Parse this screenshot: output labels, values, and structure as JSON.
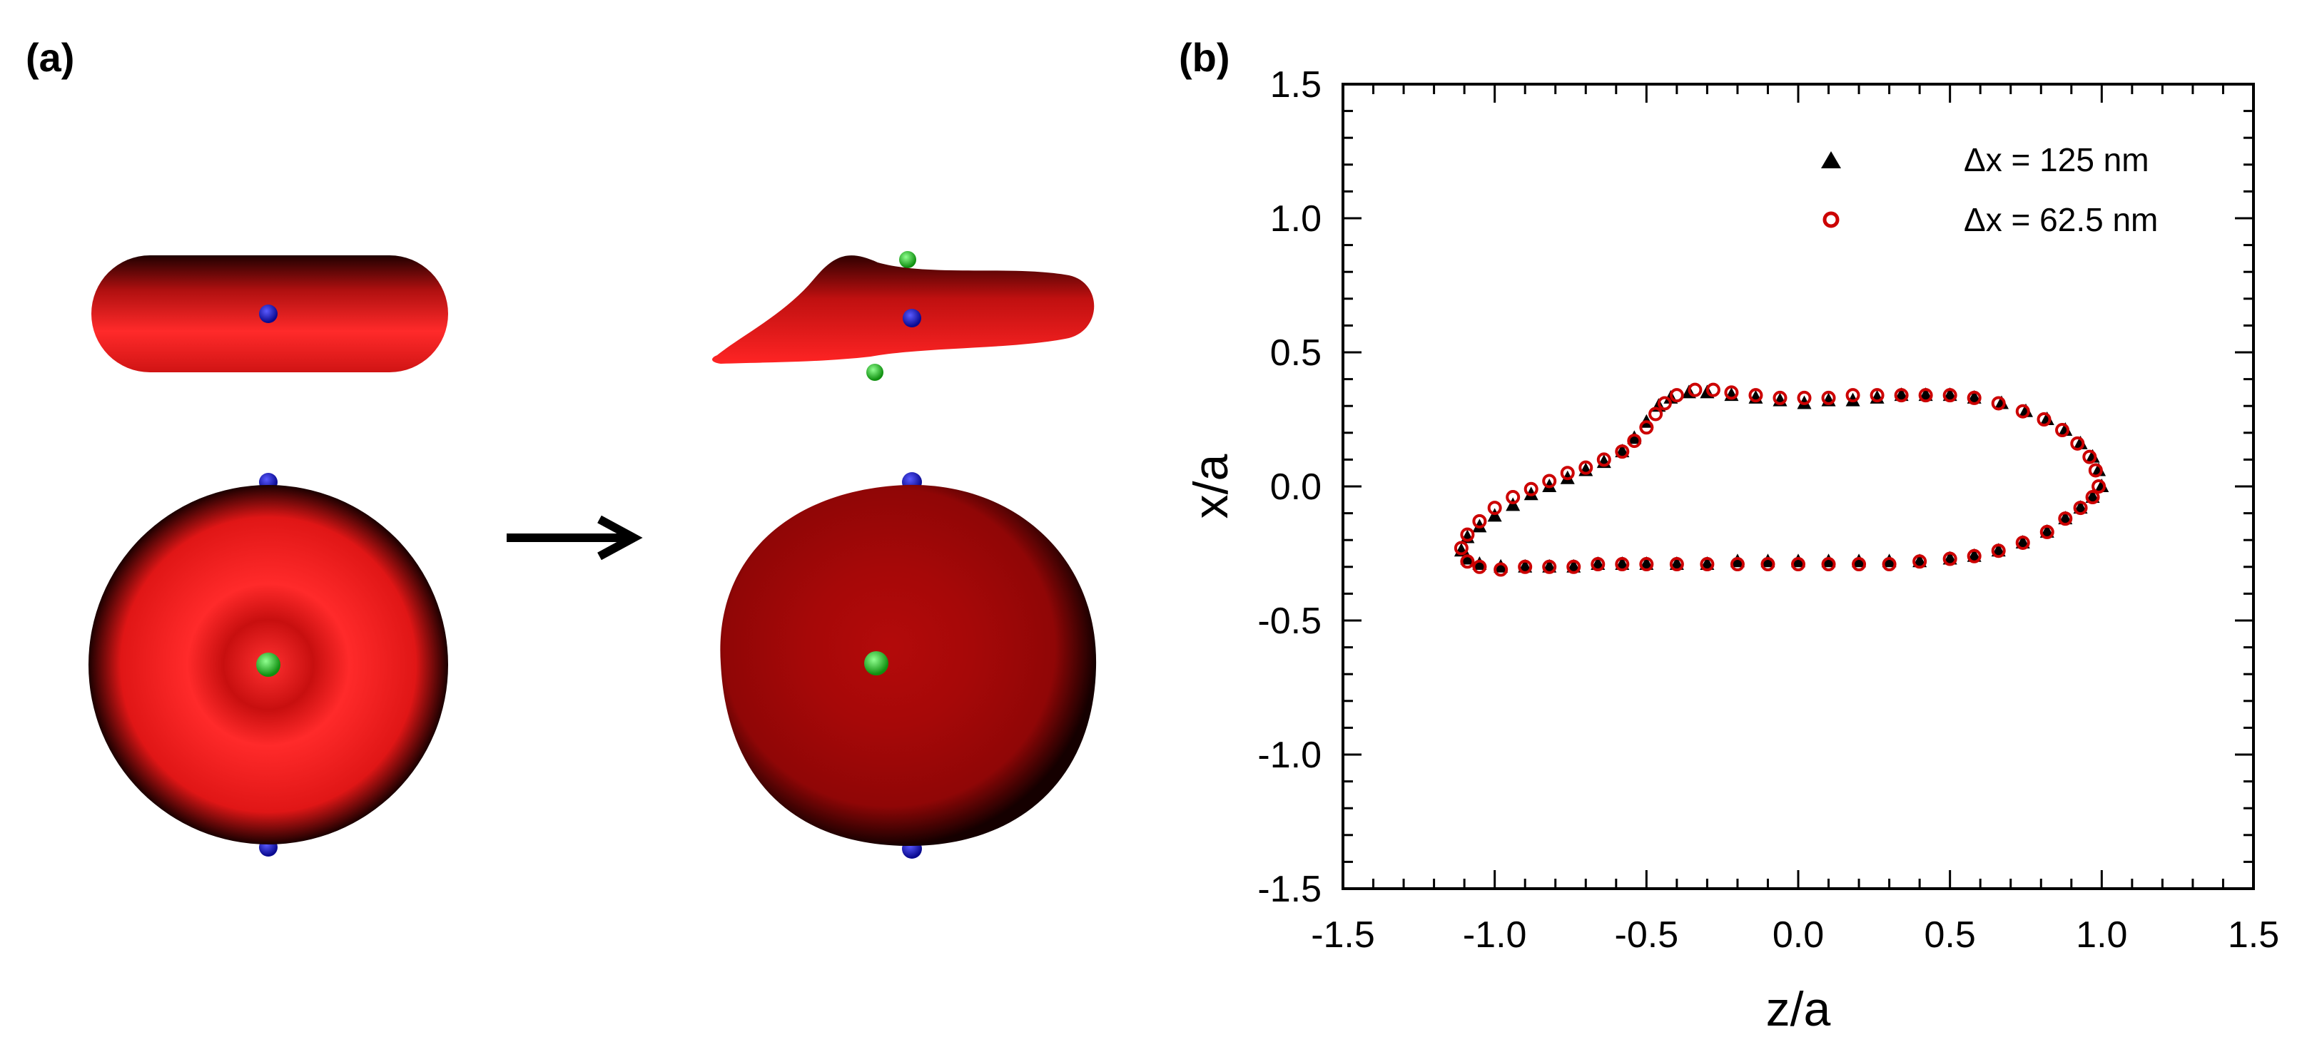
{
  "panel_a": {
    "label": "(a)",
    "colors": {
      "cell": "#ff2222",
      "cell_dark": "#000000",
      "marker_blue": "#1a1ad0",
      "marker_green": "#22cc22",
      "arrow": "#000000"
    }
  },
  "panel_b": {
    "label": "(b)"
  },
  "chart_data": {
    "type": "scatter",
    "title": "",
    "xlabel": "z/a",
    "ylabel": "x/a",
    "xlim": [
      -1.5,
      1.5
    ],
    "ylim": [
      -1.5,
      1.5
    ],
    "xticks": [
      "-1.5",
      "-1.0",
      "-0.5",
      "0.0",
      "0.5",
      "1.0",
      "1.5"
    ],
    "yticks": [
      "-1.5",
      "-1.0",
      "-0.5",
      "0.0",
      "0.5",
      "1.0",
      "1.5"
    ],
    "grid": false,
    "legend_position": "top-right",
    "series": [
      {
        "name": "Δx = 125 nm",
        "marker": "filled-triangle",
        "color": "#000000",
        "points": [
          [
            1.0,
            0.0
          ],
          [
            0.99,
            0.06
          ],
          [
            0.97,
            0.11
          ],
          [
            0.93,
            0.16
          ],
          [
            0.88,
            0.21
          ],
          [
            0.82,
            0.25
          ],
          [
            0.75,
            0.28
          ],
          [
            0.67,
            0.31
          ],
          [
            0.58,
            0.33
          ],
          [
            0.5,
            0.34
          ],
          [
            0.42,
            0.34
          ],
          [
            0.34,
            0.34
          ],
          [
            0.26,
            0.33
          ],
          [
            0.18,
            0.32
          ],
          [
            0.1,
            0.32
          ],
          [
            0.02,
            0.31
          ],
          [
            -0.06,
            0.32
          ],
          [
            -0.14,
            0.33
          ],
          [
            -0.22,
            0.34
          ],
          [
            -0.3,
            0.35
          ],
          [
            -0.36,
            0.35
          ],
          [
            -0.42,
            0.33
          ],
          [
            -0.46,
            0.3
          ],
          [
            -0.5,
            0.24
          ],
          [
            -0.54,
            0.18
          ],
          [
            -0.58,
            0.13
          ],
          [
            -0.64,
            0.09
          ],
          [
            -0.7,
            0.06
          ],
          [
            -0.76,
            0.03
          ],
          [
            -0.82,
            0.0
          ],
          [
            -0.88,
            -0.03
          ],
          [
            -0.94,
            -0.07
          ],
          [
            -1.0,
            -0.11
          ],
          [
            -1.05,
            -0.15
          ],
          [
            -1.09,
            -0.19
          ],
          [
            -1.11,
            -0.24
          ],
          [
            -1.09,
            -0.27
          ],
          [
            -1.05,
            -0.29
          ],
          [
            -0.98,
            -0.3
          ],
          [
            -0.9,
            -0.3
          ],
          [
            -0.82,
            -0.3
          ],
          [
            -0.74,
            -0.3
          ],
          [
            -0.66,
            -0.29
          ],
          [
            -0.58,
            -0.29
          ],
          [
            -0.5,
            -0.29
          ],
          [
            -0.4,
            -0.29
          ],
          [
            -0.3,
            -0.29
          ],
          [
            -0.2,
            -0.28
          ],
          [
            -0.1,
            -0.28
          ],
          [
            0.0,
            -0.28
          ],
          [
            0.1,
            -0.28
          ],
          [
            0.2,
            -0.28
          ],
          [
            0.3,
            -0.28
          ],
          [
            0.4,
            -0.28
          ],
          [
            0.5,
            -0.27
          ],
          [
            0.58,
            -0.26
          ],
          [
            0.66,
            -0.24
          ],
          [
            0.74,
            -0.21
          ],
          [
            0.82,
            -0.17
          ],
          [
            0.88,
            -0.12
          ],
          [
            0.93,
            -0.08
          ],
          [
            0.97,
            -0.04
          ]
        ]
      },
      {
        "name": "Δx = 62.5 nm",
        "marker": "open-circle",
        "color": "#cc0000",
        "points": [
          [
            0.99,
            0.0
          ],
          [
            0.98,
            0.06
          ],
          [
            0.96,
            0.11
          ],
          [
            0.92,
            0.16
          ],
          [
            0.87,
            0.21
          ],
          [
            0.81,
            0.25
          ],
          [
            0.74,
            0.28
          ],
          [
            0.66,
            0.31
          ],
          [
            0.58,
            0.33
          ],
          [
            0.5,
            0.34
          ],
          [
            0.42,
            0.34
          ],
          [
            0.34,
            0.34
          ],
          [
            0.26,
            0.34
          ],
          [
            0.18,
            0.34
          ],
          [
            0.1,
            0.33
          ],
          [
            0.02,
            0.33
          ],
          [
            -0.06,
            0.33
          ],
          [
            -0.14,
            0.34
          ],
          [
            -0.22,
            0.35
          ],
          [
            -0.28,
            0.36
          ],
          [
            -0.34,
            0.36
          ],
          [
            -0.4,
            0.34
          ],
          [
            -0.44,
            0.31
          ],
          [
            -0.47,
            0.27
          ],
          [
            -0.5,
            0.22
          ],
          [
            -0.54,
            0.17
          ],
          [
            -0.58,
            0.13
          ],
          [
            -0.64,
            0.1
          ],
          [
            -0.7,
            0.07
          ],
          [
            -0.76,
            0.05
          ],
          [
            -0.82,
            0.02
          ],
          [
            -0.88,
            -0.01
          ],
          [
            -0.94,
            -0.04
          ],
          [
            -1.0,
            -0.08
          ],
          [
            -1.05,
            -0.13
          ],
          [
            -1.09,
            -0.18
          ],
          [
            -1.11,
            -0.23
          ],
          [
            -1.09,
            -0.28
          ],
          [
            -1.05,
            -0.3
          ],
          [
            -0.98,
            -0.31
          ],
          [
            -0.9,
            -0.3
          ],
          [
            -0.82,
            -0.3
          ],
          [
            -0.74,
            -0.3
          ],
          [
            -0.66,
            -0.29
          ],
          [
            -0.58,
            -0.29
          ],
          [
            -0.5,
            -0.29
          ],
          [
            -0.4,
            -0.29
          ],
          [
            -0.3,
            -0.29
          ],
          [
            -0.2,
            -0.29
          ],
          [
            -0.1,
            -0.29
          ],
          [
            0.0,
            -0.29
          ],
          [
            0.1,
            -0.29
          ],
          [
            0.2,
            -0.29
          ],
          [
            0.3,
            -0.29
          ],
          [
            0.4,
            -0.28
          ],
          [
            0.5,
            -0.27
          ],
          [
            0.58,
            -0.26
          ],
          [
            0.66,
            -0.24
          ],
          [
            0.74,
            -0.21
          ],
          [
            0.82,
            -0.17
          ],
          [
            0.88,
            -0.12
          ],
          [
            0.93,
            -0.08
          ],
          [
            0.97,
            -0.04
          ]
        ]
      }
    ]
  }
}
